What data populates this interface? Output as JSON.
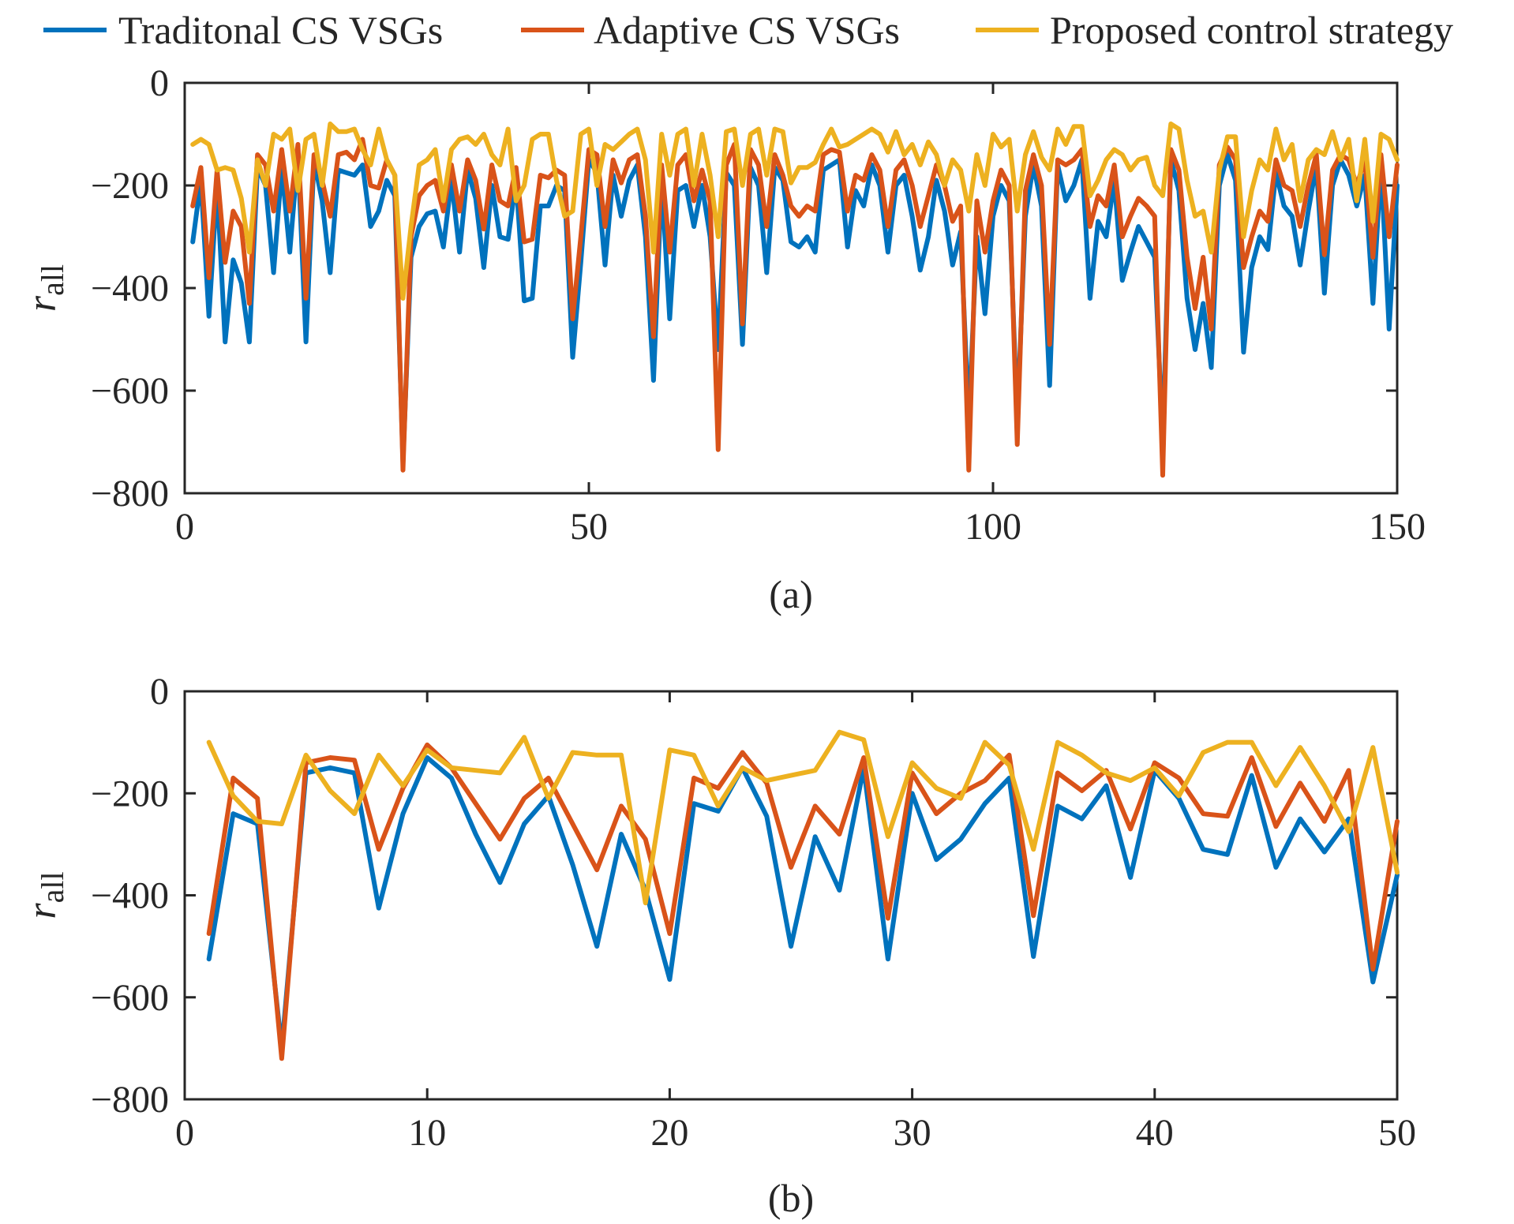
{
  "legend": {
    "placement": "top",
    "entries": [
      {
        "label": "Traditonal CS VSGs",
        "color": "#0072BD"
      },
      {
        "label": "Adaptive CS VSGs",
        "color": "#D95319"
      },
      {
        "label": "Proposed control strategy",
        "color": "#EDB120"
      }
    ]
  },
  "chart_data": [
    {
      "type": "line",
      "caption": "(a)",
      "ylabel": {
        "main": "r",
        "sub": "all"
      },
      "xlim": [
        0,
        150
      ],
      "ylim": [
        -800,
        0
      ],
      "xticks": [
        0,
        50,
        100,
        150
      ],
      "xtick_labels": [
        "0",
        "50",
        "100",
        "150"
      ],
      "yticks": [
        0,
        -200,
        -400,
        -600,
        -800
      ],
      "ytick_labels": [
        "0",
        "−200",
        "−400",
        "−600",
        "−800"
      ],
      "grid": false,
      "x": [
        1,
        2,
        3,
        4,
        5,
        6,
        7,
        8,
        9,
        10,
        11,
        12,
        13,
        14,
        15,
        16,
        17,
        18,
        19,
        20,
        21,
        22,
        23,
        24,
        25,
        26,
        27,
        28,
        29,
        30,
        31,
        32,
        33,
        34,
        35,
        36,
        37,
        38,
        39,
        40,
        41,
        42,
        43,
        44,
        45,
        46,
        47,
        48,
        49,
        50,
        51,
        52,
        53,
        54,
        55,
        56,
        57,
        58,
        59,
        60,
        61,
        62,
        63,
        64,
        65,
        66,
        67,
        68,
        69,
        70,
        71,
        72,
        73,
        74,
        75,
        76,
        77,
        78,
        79,
        80,
        81,
        82,
        83,
        84,
        85,
        86,
        87,
        88,
        89,
        90,
        91,
        92,
        93,
        94,
        95,
        96,
        97,
        98,
        99,
        100,
        101,
        102,
        103,
        104,
        105,
        106,
        107,
        108,
        109,
        110,
        111,
        112,
        113,
        114,
        115,
        116,
        117,
        118,
        119,
        120,
        121,
        122,
        123,
        124,
        125,
        126,
        127,
        128,
        129,
        130,
        131,
        132,
        133,
        134,
        135,
        136,
        137,
        138,
        139,
        140,
        141,
        142,
        143,
        144,
        145,
        146,
        147,
        148,
        149,
        150
      ],
      "series": [
        {
          "name": "Traditonal CS VSGs",
          "color": "#0072BD",
          "values": [
            -310,
            -190,
            -455,
            -200,
            -505,
            -345,
            -390,
            -505,
            -165,
            -200,
            -370,
            -165,
            -330,
            -140,
            -505,
            -150,
            -230,
            -370,
            -170,
            -175,
            -180,
            -160,
            -280,
            -250,
            -190,
            -220,
            -740,
            -340,
            -280,
            -255,
            -250,
            -320,
            -190,
            -330,
            -170,
            -225,
            -360,
            -200,
            -300,
            -305,
            -190,
            -425,
            -420,
            -240,
            -240,
            -200,
            -210,
            -535,
            -350,
            -150,
            -175,
            -355,
            -180,
            -260,
            -190,
            -160,
            -300,
            -580,
            -190,
            -460,
            -210,
            -200,
            -280,
            -200,
            -300,
            -520,
            -175,
            -200,
            -510,
            -165,
            -200,
            -370,
            -165,
            -190,
            -310,
            -320,
            -300,
            -330,
            -170,
            -160,
            -150,
            -320,
            -210,
            -240,
            -160,
            -200,
            -330,
            -200,
            -180,
            -260,
            -365,
            -300,
            -190,
            -250,
            -355,
            -290,
            -660,
            -300,
            -450,
            -260,
            -200,
            -230,
            -660,
            -260,
            -160,
            -240,
            -590,
            -160,
            -230,
            -200,
            -150,
            -420,
            -270,
            -300,
            -190,
            -385,
            -330,
            -280,
            -310,
            -340,
            -700,
            -150,
            -210,
            -420,
            -520,
            -430,
            -555,
            -200,
            -140,
            -190,
            -525,
            -360,
            -300,
            -325,
            -175,
            -240,
            -260,
            -355,
            -250,
            -160,
            -410,
            -200,
            -150,
            -180,
            -240,
            -180,
            -430,
            -160,
            -480,
            -200
          ]
        },
        {
          "name": "Adaptive CS VSGs",
          "color": "#D95319",
          "values": [
            -240,
            -165,
            -380,
            -170,
            -350,
            -250,
            -280,
            -430,
            -140,
            -160,
            -250,
            -130,
            -250,
            -120,
            -420,
            -140,
            -190,
            -260,
            -140,
            -135,
            -150,
            -110,
            -200,
            -205,
            -150,
            -180,
            -755,
            -300,
            -220,
            -200,
            -190,
            -250,
            -160,
            -250,
            -150,
            -190,
            -285,
            -160,
            -230,
            -240,
            -165,
            -310,
            -305,
            -180,
            -185,
            -170,
            -180,
            -460,
            -300,
            -130,
            -140,
            -280,
            -150,
            -195,
            -150,
            -140,
            -260,
            -495,
            -160,
            -330,
            -160,
            -140,
            -230,
            -170,
            -230,
            -715,
            -160,
            -120,
            -470,
            -130,
            -160,
            -280,
            -140,
            -180,
            -240,
            -260,
            -240,
            -250,
            -140,
            -130,
            -135,
            -250,
            -180,
            -190,
            -140,
            -170,
            -280,
            -170,
            -150,
            -200,
            -280,
            -220,
            -160,
            -200,
            -270,
            -240,
            -755,
            -230,
            -330,
            -230,
            -170,
            -200,
            -705,
            -210,
            -140,
            -200,
            -510,
            -150,
            -160,
            -150,
            -130,
            -280,
            -220,
            -240,
            -160,
            -300,
            -260,
            -225,
            -240,
            -260,
            -765,
            -130,
            -170,
            -340,
            -440,
            -340,
            -480,
            -160,
            -125,
            -150,
            -360,
            -300,
            -250,
            -270,
            -150,
            -200,
            -210,
            -280,
            -200,
            -140,
            -335,
            -170,
            -140,
            -150,
            -200,
            -150,
            -340,
            -140,
            -300,
            -160
          ]
        },
        {
          "name": "Proposed control strategy",
          "color": "#EDB120",
          "values": [
            -120,
            -110,
            -120,
            -170,
            -165,
            -170,
            -225,
            -330,
            -150,
            -200,
            -100,
            -110,
            -90,
            -210,
            -110,
            -100,
            -200,
            -80,
            -95,
            -95,
            -90,
            -130,
            -160,
            -90,
            -150,
            -180,
            -420,
            -280,
            -160,
            -150,
            -130,
            -230,
            -130,
            -110,
            -105,
            -120,
            -100,
            -140,
            -160,
            -90,
            -230,
            -200,
            -110,
            -100,
            -100,
            -190,
            -260,
            -250,
            -100,
            -90,
            -200,
            -120,
            -130,
            -115,
            -100,
            -90,
            -150,
            -330,
            -100,
            -180,
            -100,
            -90,
            -200,
            -100,
            -180,
            -300,
            -95,
            -90,
            -200,
            -100,
            -90,
            -180,
            -90,
            -95,
            -195,
            -165,
            -165,
            -155,
            -120,
            -90,
            -125,
            -120,
            -110,
            -100,
            -90,
            -100,
            -135,
            -95,
            -140,
            -120,
            -160,
            -115,
            -140,
            -200,
            -150,
            -170,
            -250,
            -140,
            -200,
            -100,
            -125,
            -110,
            -250,
            -140,
            -95,
            -145,
            -170,
            -90,
            -120,
            -85,
            -85,
            -220,
            -190,
            -150,
            -130,
            -140,
            -170,
            -150,
            -145,
            -200,
            -220,
            -80,
            -90,
            -190,
            -260,
            -250,
            -330,
            -170,
            -105,
            -105,
            -300,
            -210,
            -150,
            -170,
            -90,
            -150,
            -120,
            -230,
            -150,
            -130,
            -140,
            -95,
            -150,
            -110,
            -230,
            -110,
            -270,
            -100,
            -110,
            -150
          ]
        }
      ]
    },
    {
      "type": "line",
      "caption": "(b)",
      "ylabel": {
        "main": "r",
        "sub": "all"
      },
      "xlim": [
        0,
        50
      ],
      "ylim": [
        -800,
        0
      ],
      "xticks": [
        0,
        10,
        20,
        30,
        40,
        50
      ],
      "xtick_labels": [
        "0",
        "10",
        "20",
        "30",
        "40",
        "50"
      ],
      "yticks": [
        0,
        -200,
        -400,
        -600,
        -800
      ],
      "ytick_labels": [
        "0",
        "−200",
        "−400",
        "−600",
        "−800"
      ],
      "grid": false,
      "x": [
        1,
        2,
        3,
        4,
        5,
        6,
        7,
        8,
        9,
        10,
        11,
        12,
        13,
        14,
        15,
        16,
        17,
        18,
        19,
        20,
        21,
        22,
        23,
        24,
        25,
        26,
        27,
        28,
        29,
        30,
        31,
        32,
        33,
        34,
        35,
        36,
        37,
        38,
        39,
        40,
        41,
        42,
        43,
        44,
        45,
        46,
        47,
        48,
        49,
        50
      ],
      "series": [
        {
          "name": "Traditonal CS VSGs",
          "color": "#0072BD",
          "values": [
            -525,
            -240,
            -260,
            -700,
            -160,
            -150,
            -160,
            -425,
            -240,
            -130,
            -170,
            -280,
            -375,
            -260,
            -205,
            -340,
            -500,
            -280,
            -390,
            -565,
            -220,
            -235,
            -150,
            -245,
            -500,
            -285,
            -390,
            -150,
            -525,
            -200,
            -330,
            -290,
            -220,
            -170,
            -520,
            -225,
            -250,
            -185,
            -365,
            -155,
            -210,
            -310,
            -320,
            -165,
            -345,
            -250,
            -315,
            -250,
            -570,
            -360
          ]
        },
        {
          "name": "Adaptive CS VSGs",
          "color": "#D95319",
          "values": [
            -475,
            -170,
            -210,
            -720,
            -140,
            -130,
            -135,
            -310,
            -190,
            -105,
            -150,
            -220,
            -290,
            -210,
            -170,
            -260,
            -350,
            -225,
            -290,
            -475,
            -170,
            -190,
            -120,
            -180,
            -345,
            -225,
            -280,
            -130,
            -445,
            -160,
            -240,
            -200,
            -175,
            -125,
            -440,
            -160,
            -195,
            -155,
            -270,
            -140,
            -170,
            -240,
            -245,
            -130,
            -265,
            -180,
            -255,
            -155,
            -545,
            -255
          ]
        },
        {
          "name": "Proposed control strategy",
          "color": "#EDB120",
          "values": [
            -100,
            -205,
            -255,
            -260,
            -125,
            -195,
            -240,
            -125,
            -185,
            -115,
            -150,
            -155,
            -160,
            -90,
            -210,
            -120,
            -125,
            -125,
            -415,
            -115,
            -125,
            -225,
            -150,
            -175,
            -165,
            -155,
            -80,
            -95,
            -285,
            -140,
            -190,
            -210,
            -100,
            -145,
            -310,
            -100,
            -125,
            -160,
            -175,
            -150,
            -205,
            -120,
            -100,
            -100,
            -185,
            -110,
            -185,
            -275,
            -110,
            -355
          ]
        }
      ]
    }
  ]
}
